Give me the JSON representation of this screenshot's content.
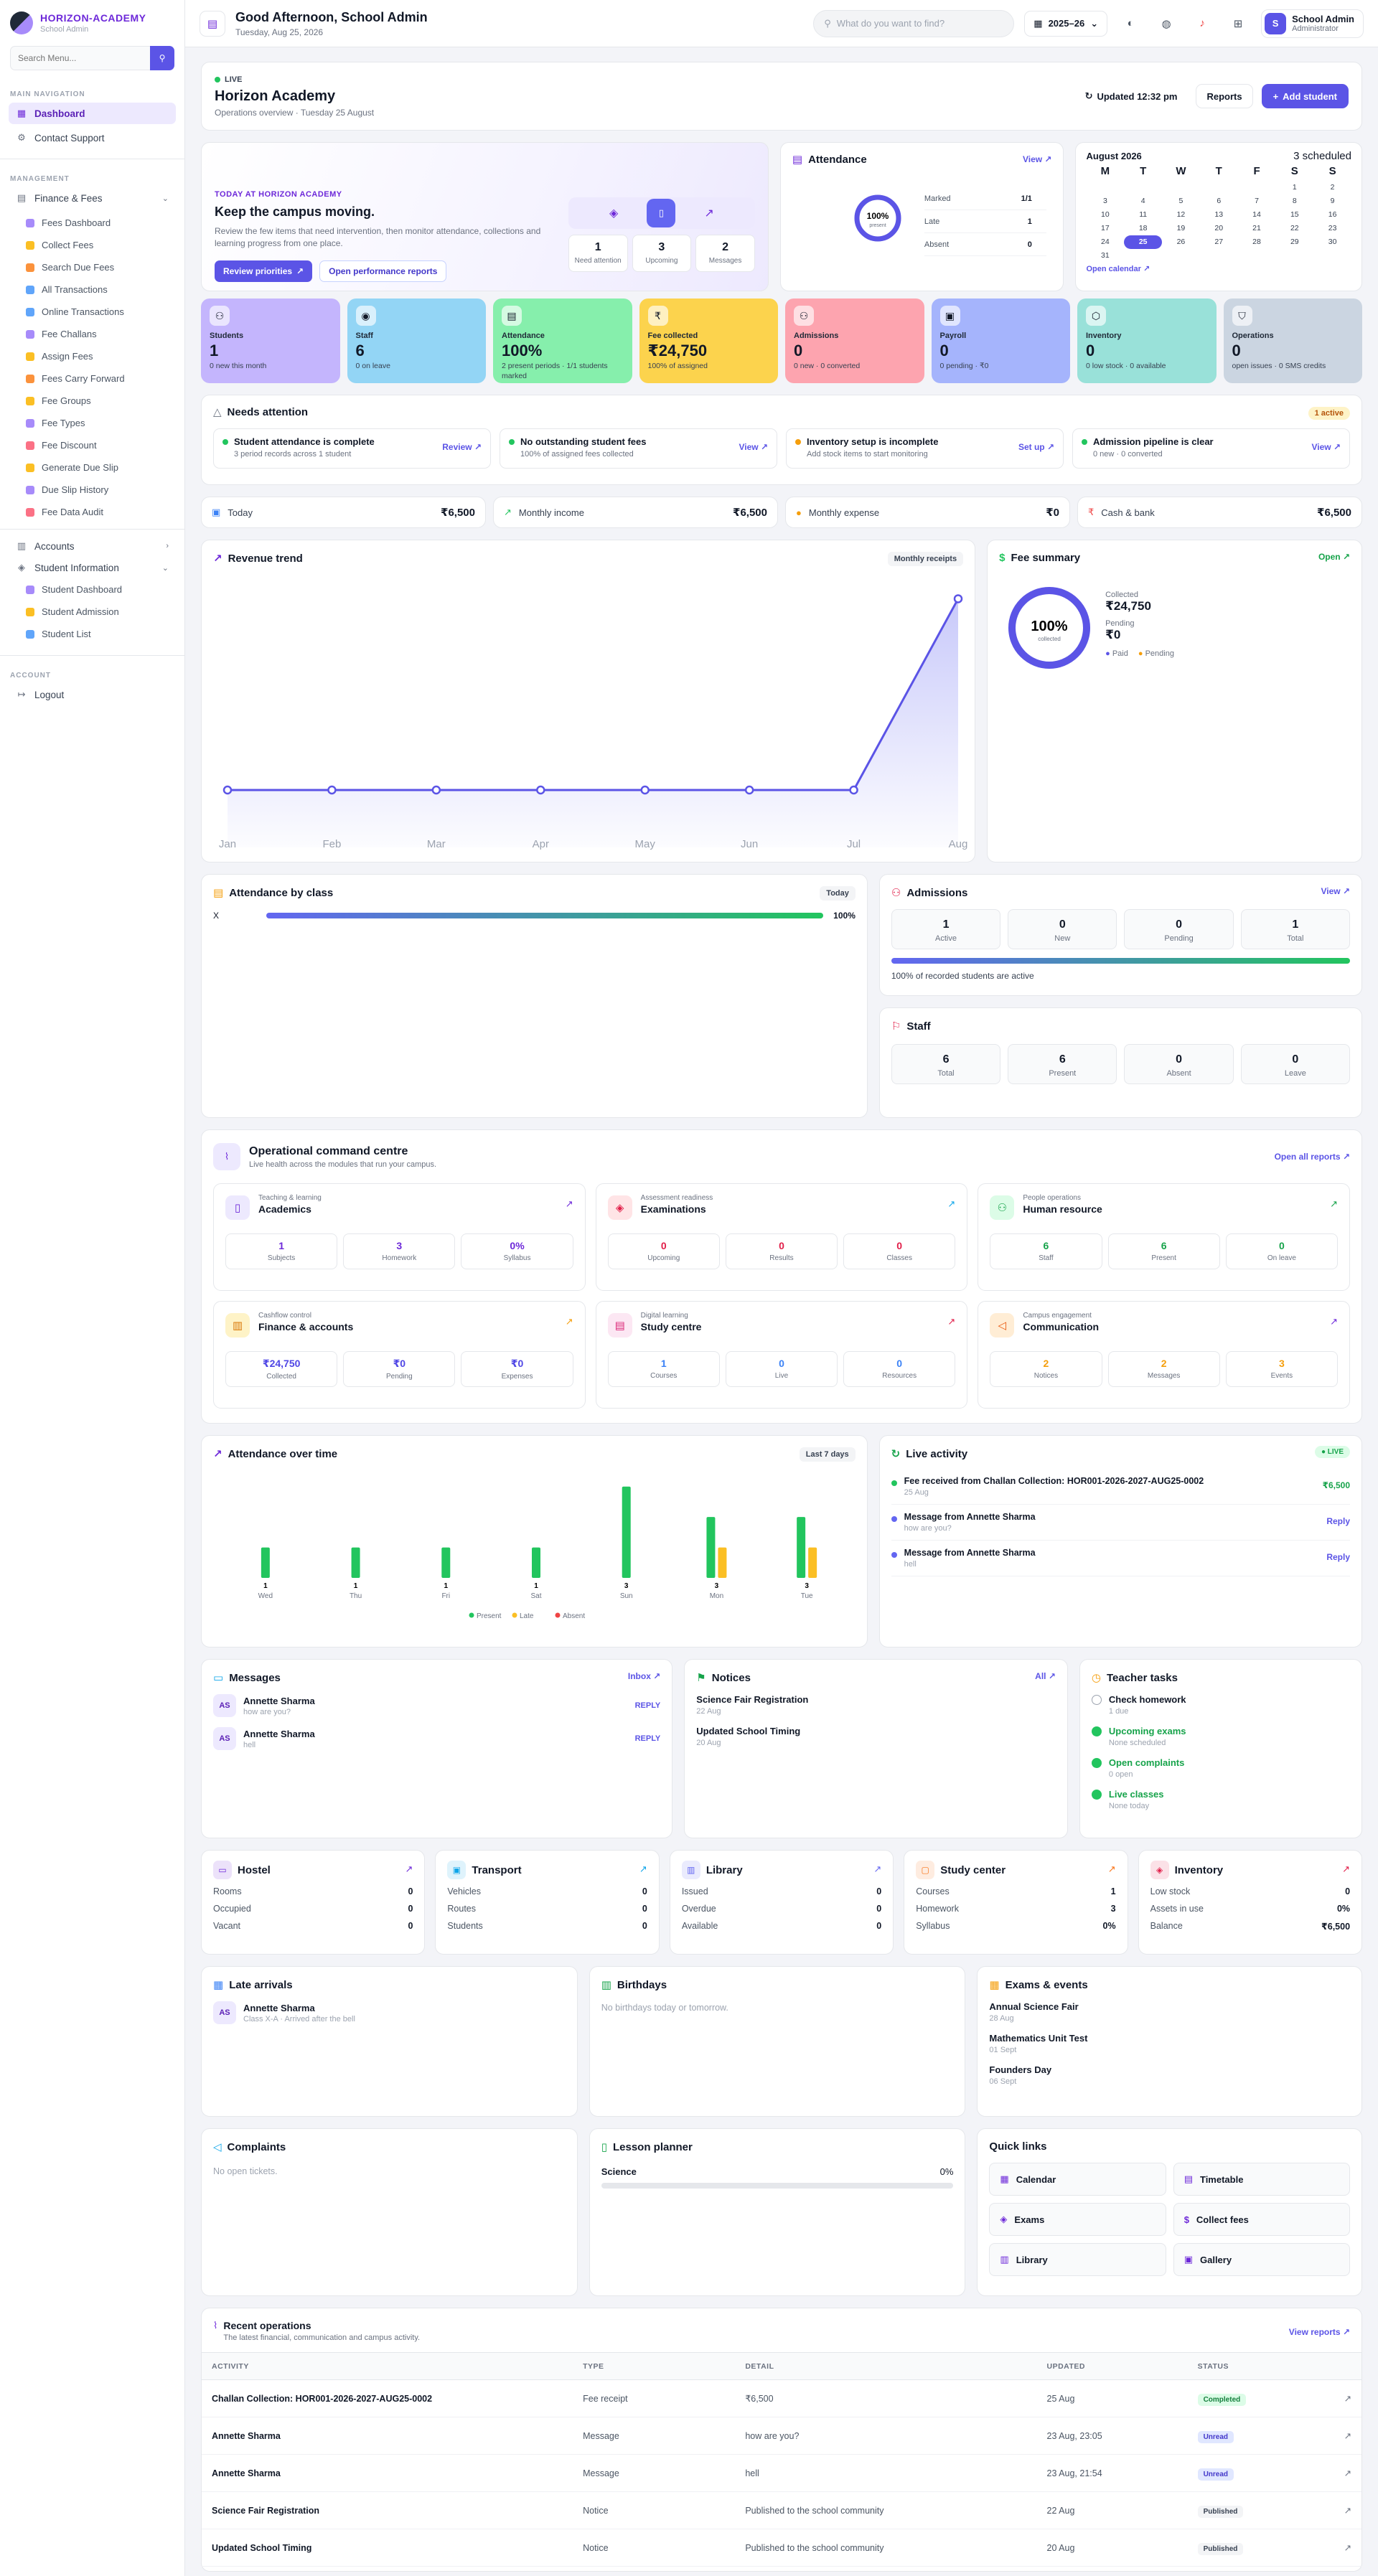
{
  "sidebar": {
    "brand": "HORIZON-ACADEMY",
    "brand_sub": "School Admin",
    "search_placeholder": "Search Menu...",
    "main_nav_label": "MAIN NAVIGATION",
    "dashboard": "Dashboard",
    "contact": "Contact Support",
    "management_label": "MANAGEMENT",
    "finance": "Finance & Fees",
    "finance_items": [
      "Fees Dashboard",
      "Collect Fees",
      "Search Due Fees",
      "All Transactions",
      "Online Transactions",
      "Fee Challans",
      "Assign Fees",
      "Fees Carry Forward",
      "Fee Groups",
      "Fee Types",
      "Fee Discount",
      "Generate Due Slip",
      "Due Slip History",
      "Fee Data Audit"
    ],
    "finance_colors": [
      "#a78bfa",
      "#fbbf24",
      "#fb923c",
      "#60a5fa",
      "#60a5fa",
      "#a78bfa",
      "#fbbf24",
      "#fb923c",
      "#fbbf24",
      "#a78bfa",
      "#fb7185",
      "#fbbf24",
      "#a78bfa",
      "#fb7185"
    ],
    "accounts": "Accounts",
    "student_info": "Student Information",
    "student_items": [
      "Student Dashboard",
      "Student Admission",
      "Student List"
    ],
    "account_label": "ACCOUNT",
    "logout": "Logout"
  },
  "topbar": {
    "greeting": "Good Afternoon, School Admin",
    "date": "Tuesday, Aug 25, 2026",
    "search_placeholder": "What do you want to find?",
    "year": "2025–26",
    "user_initial": "S",
    "user_name": "School Admin",
    "user_role": "Administrator"
  },
  "header": {
    "live": "LIVE",
    "title": "Horizon Academy",
    "subtitle": "Operations overview · Tuesday 25 August",
    "updated": "Updated 12:32 pm",
    "reports": "Reports",
    "add_student": "Add student"
  },
  "hero": {
    "kicker": "TODAY AT HORIZON ACADEMY",
    "title": "Keep the campus moving.",
    "text": "Review the few items that need intervention, then monitor attendance, collections and learning progress from one place.",
    "btn1": "Review priorities",
    "btn2": "Open performance reports",
    "stats": [
      {
        "value": "1",
        "label": "Need attention"
      },
      {
        "value": "3",
        "label": "Upcoming"
      },
      {
        "value": "2",
        "label": "Messages"
      }
    ]
  },
  "attendance": {
    "title": "Attendance",
    "link": "View",
    "percent": "100%",
    "percent_label": "present",
    "fraction": 1,
    "rows": [
      {
        "label": "Marked",
        "value": "1/1"
      },
      {
        "label": "Late",
        "value": "1"
      },
      {
        "label": "Absent",
        "value": "0"
      }
    ]
  },
  "calendar": {
    "month": "August 2026",
    "scheduled": "3 scheduled",
    "days": [
      "M",
      "T",
      "W",
      "T",
      "F",
      "S",
      "S"
    ],
    "today": 25,
    "leading_blanks": 5,
    "total_days": 31,
    "link": "Open calendar"
  },
  "kpis": [
    {
      "label": "Students",
      "value": "1",
      "sub": "0 new this month",
      "bg": "#c4b5fd",
      "icon": "users-icon"
    },
    {
      "label": "Staff",
      "value": "6",
      "sub": "0 on leave",
      "bg": "#93d5f5",
      "icon": "staff-icon"
    },
    {
      "label": "Attendance",
      "value": "100%",
      "sub": "2 present periods · 1/1 students marked",
      "bg": "#86efac",
      "icon": "clipboard-icon"
    },
    {
      "label": "Fee collected",
      "value": "₹24,750",
      "sub": "100% of assigned",
      "bg": "#fcd34d",
      "icon": "rupee-icon"
    },
    {
      "label": "Admissions",
      "value": "0",
      "sub": "0 new · 0 converted",
      "bg": "#fda4af",
      "icon": "user-plus-icon"
    },
    {
      "label": "Payroll",
      "value": "0",
      "sub": "0 pending · ₹0",
      "bg": "#a5b4fc",
      "icon": "wallet-icon"
    },
    {
      "label": "Inventory",
      "value": "0",
      "sub": "0 low stock · 0 available",
      "bg": "#99e1d9",
      "icon": "box-icon"
    },
    {
      "label": "Operations",
      "value": "0",
      "sub": "open issues · 0 SMS credits",
      "bg": "#cbd5e1",
      "icon": "shield-icon"
    }
  ],
  "needs_attention": {
    "title": "Needs attention",
    "badge": "1 active",
    "items": [
      {
        "title": "Student attendance is complete",
        "sub": "3 period records across 1 student",
        "link": "Review",
        "color": "#22c55e"
      },
      {
        "title": "No outstanding student fees",
        "sub": "100% of assigned fees collected",
        "link": "View",
        "color": "#22c55e"
      },
      {
        "title": "Inventory setup is incomplete",
        "sub": "Add stock items to start monitoring",
        "link": "Set up",
        "color": "#f59e0b"
      },
      {
        "title": "Admission pipeline is clear",
        "sub": "0 new · 0 converted",
        "link": "View",
        "color": "#22c55e"
      }
    ]
  },
  "mini": [
    {
      "label": "Today",
      "value": "₹6,500",
      "icon": "▣",
      "color": "#3b82f6"
    },
    {
      "label": "Monthly income",
      "value": "₹6,500",
      "icon": "↗",
      "color": "#22c55e"
    },
    {
      "label": "Monthly expense",
      "value": "₹0",
      "icon": "●",
      "color": "#f59e0b"
    },
    {
      "label": "Cash & bank",
      "value": "₹6,500",
      "icon": "₹",
      "color": "#ef4444"
    }
  ],
  "revenue": {
    "title": "Revenue trend",
    "tag": "Monthly receipts"
  },
  "chart_data": [
    {
      "type": "line",
      "title": "Revenue trend",
      "categories": [
        "Jan",
        "Feb",
        "Mar",
        "Apr",
        "May",
        "Jun",
        "Jul",
        "Aug"
      ],
      "values": [
        0,
        0,
        0,
        0,
        0,
        0,
        0,
        24750
      ],
      "ylim": [
        0,
        26000
      ],
      "grid": false
    },
    {
      "type": "bar",
      "title": "Attendance over time",
      "categories": [
        "Wed",
        "Thu",
        "Fri",
        "Sat",
        "Sun",
        "Mon",
        "Tue"
      ],
      "series": [
        {
          "name": "Present",
          "values": [
            1,
            1,
            1,
            1,
            3,
            2,
            2
          ],
          "color": "#22c55e"
        },
        {
          "name": "Late",
          "values": [
            0,
            0,
            0,
            0,
            0,
            1,
            1
          ],
          "color": "#fbbf24"
        },
        {
          "name": "Absent",
          "values": [
            0,
            0,
            0,
            0,
            0,
            0,
            0
          ],
          "color": "#ef4444"
        }
      ],
      "totals": [
        "1",
        "1",
        "1",
        "1",
        "3",
        "3",
        "3"
      ],
      "ylim": [
        0,
        3.3
      ]
    }
  ],
  "fee_summary": {
    "title": "Fee summary",
    "link": "Open",
    "percent": "100%",
    "percent_label": "collected",
    "fraction": 1,
    "collected_label": "Collected",
    "collected": "₹24,750",
    "pending_label": "Pending",
    "pending": "₹0",
    "legend": [
      "Paid",
      "Pending"
    ]
  },
  "att_class": {
    "title": "Attendance by class",
    "tag": "Today",
    "rows": [
      {
        "label": "X",
        "value": "100%",
        "fraction": 1
      }
    ]
  },
  "admissions": {
    "title": "Admissions",
    "link": "View",
    "boxes": [
      {
        "v": "1",
        "l": "Active"
      },
      {
        "v": "0",
        "l": "New"
      },
      {
        "v": "0",
        "l": "Pending"
      },
      {
        "v": "1",
        "l": "Total"
      }
    ],
    "fraction": 1,
    "note": "100% of recorded students are active"
  },
  "staff": {
    "title": "Staff",
    "boxes": [
      {
        "v": "6",
        "l": "Total"
      },
      {
        "v": "6",
        "l": "Present"
      },
      {
        "v": "0",
        "l": "Absent"
      },
      {
        "v": "0",
        "l": "Leave"
      }
    ]
  },
  "ops": {
    "title": "Operational command centre",
    "sub": "Live health across the modules that run your campus.",
    "link": "Open all reports",
    "cards": [
      {
        "kicker": "Teaching & learning",
        "title": "Academics",
        "bg": "#ede9fe",
        "fg": "#6d28d9",
        "icon": "book-icon",
        "arrow": "#6d28d9",
        "vcol": "#6d28d9",
        "boxes": [
          {
            "v": "1",
            "l": "Subjects"
          },
          {
            "v": "3",
            "l": "Homework"
          },
          {
            "v": "0%",
            "l": "Syllabus"
          }
        ]
      },
      {
        "kicker": "Assessment readiness",
        "title": "Examinations",
        "bg": "#ffe4e6",
        "fg": "#e11d48",
        "icon": "grad-icon",
        "arrow": "#0ea5e9",
        "vcol": "#e11d48",
        "boxes": [
          {
            "v": "0",
            "l": "Upcoming"
          },
          {
            "v": "0",
            "l": "Results"
          },
          {
            "v": "0",
            "l": "Classes"
          }
        ]
      },
      {
        "kicker": "People operations",
        "title": "Human resource",
        "bg": "#dcfce7",
        "fg": "#16a34a",
        "icon": "people-icon",
        "arrow": "#16a34a",
        "vcol": "#16a34a",
        "boxes": [
          {
            "v": "6",
            "l": "Staff"
          },
          {
            "v": "6",
            "l": "Present"
          },
          {
            "v": "0",
            "l": "On leave"
          }
        ]
      },
      {
        "kicker": "Cashflow control",
        "title": "Finance & accounts",
        "bg": "#fef3c7",
        "fg": "#d97706",
        "icon": "chart-icon",
        "arrow": "#f59e0b",
        "vcol": "#4f46e5",
        "boxes": [
          {
            "v": "₹24,750",
            "l": "Collected"
          },
          {
            "v": "₹0",
            "l": "Pending"
          },
          {
            "v": "₹0",
            "l": "Expenses"
          }
        ]
      },
      {
        "kicker": "Digital learning",
        "title": "Study centre",
        "bg": "#fce7f3",
        "fg": "#db2777",
        "icon": "library-icon",
        "arrow": "#e11d48",
        "vcol": "#3b82f6",
        "boxes": [
          {
            "v": "1",
            "l": "Courses"
          },
          {
            "v": "0",
            "l": "Live"
          },
          {
            "v": "0",
            "l": "Resources"
          }
        ]
      },
      {
        "kicker": "Campus engagement",
        "title": "Communication",
        "bg": "#ffedd5",
        "fg": "#ea580c",
        "icon": "megaphone-icon",
        "arrow": "#6d28d9",
        "vcol": "#f59e0b",
        "boxes": [
          {
            "v": "2",
            "l": "Notices"
          },
          {
            "v": "2",
            "l": "Messages"
          },
          {
            "v": "3",
            "l": "Events"
          }
        ]
      }
    ]
  },
  "att_time": {
    "title": "Attendance over time",
    "tag": "Last 7 days"
  },
  "live_activity": {
    "title": "Live activity",
    "badge": "LIVE",
    "items": [
      {
        "title": "Fee received from Challan Collection: HOR001-2026-2027-AUG25-0002",
        "sub": "25 Aug",
        "right": "₹6,500",
        "color": "#22c55e",
        "rcol": "#16a34a"
      },
      {
        "title": "Message from Annette Sharma",
        "sub": "how are you?",
        "right": "Reply",
        "color": "#6366f1",
        "rcol": "#5b54e6"
      },
      {
        "title": "Message from Annette Sharma",
        "sub": "hell",
        "right": "Reply",
        "color": "#6366f1",
        "rcol": "#5b54e6"
      }
    ]
  },
  "messages": {
    "title": "Messages",
    "link": "Inbox",
    "items": [
      {
        "ini": "AS",
        "name": "Annette Sharma",
        "text": "how are you?",
        "act": "REPLY"
      },
      {
        "ini": "AS",
        "name": "Annette Sharma",
        "text": "hell",
        "act": "REPLY"
      }
    ]
  },
  "notices": {
    "title": "Notices",
    "link": "All",
    "items": [
      {
        "t": "Science Fair Registration",
        "d": "22 Aug"
      },
      {
        "t": "Updated School Timing",
        "d": "20 Aug"
      }
    ]
  },
  "tasks": {
    "title": "Teacher tasks",
    "items": [
      {
        "t": "Check homework",
        "s": "1 due",
        "done": false
      },
      {
        "t": "Upcoming exams",
        "s": "None scheduled",
        "done": true
      },
      {
        "t": "Open complaints",
        "s": "0 open",
        "done": true
      },
      {
        "t": "Live classes",
        "s": "None today",
        "done": true
      }
    ]
  },
  "modules": [
    {
      "title": "Hostel",
      "icon": "bed-icon",
      "color": "#6d28d9",
      "rows": [
        {
          "k": "Rooms",
          "v": "0"
        },
        {
          "k": "Occupied",
          "v": "0"
        },
        {
          "k": "Vacant",
          "v": "0"
        }
      ]
    },
    {
      "title": "Transport",
      "icon": "bus-icon",
      "color": "#0ea5e9",
      "rows": [
        {
          "k": "Vehicles",
          "v": "0"
        },
        {
          "k": "Routes",
          "v": "0"
        },
        {
          "k": "Students",
          "v": "0"
        }
      ]
    },
    {
      "title": "Library",
      "icon": "library-icon",
      "color": "#6366f1",
      "rows": [
        {
          "k": "Issued",
          "v": "0"
        },
        {
          "k": "Overdue",
          "v": "0"
        },
        {
          "k": "Available",
          "v": "0"
        }
      ]
    },
    {
      "title": "Study center",
      "icon": "screen-icon",
      "color": "#f97316",
      "rows": [
        {
          "k": "Courses",
          "v": "1"
        },
        {
          "k": "Homework",
          "v": "3"
        },
        {
          "k": "Syllabus",
          "v": "0%"
        }
      ]
    },
    {
      "title": "Inventory",
      "icon": "gem-icon",
      "color": "#e11d48",
      "rows": [
        {
          "k": "Low stock",
          "v": "0"
        },
        {
          "k": "Assets in use",
          "v": "0%"
        },
        {
          "k": "Balance",
          "v": "₹6,500"
        }
      ]
    }
  ],
  "late": {
    "title": "Late arrivals",
    "ini": "AS",
    "name": "Annette Sharma",
    "sub": "Class X-A · Arrived after the bell"
  },
  "birthdays": {
    "title": "Birthdays",
    "empty": "No birthdays today or tomorrow."
  },
  "exams": {
    "title": "Exams & events",
    "items": [
      {
        "t": "Annual Science Fair",
        "d": "28 Aug"
      },
      {
        "t": "Mathematics Unit Test",
        "d": "01 Sept"
      },
      {
        "t": "Founders Day",
        "d": "06 Sept"
      }
    ]
  },
  "complaints": {
    "title": "Complaints",
    "empty": "No open tickets."
  },
  "lesson": {
    "title": "Lesson planner",
    "subject": "Science",
    "pct": "0%",
    "fraction": 0
  },
  "quick": {
    "title": "Quick links",
    "items": [
      "Calendar",
      "Timetable",
      "Exams",
      "Collect fees",
      "Library",
      "Gallery"
    ]
  },
  "recent": {
    "title": "Recent operations",
    "sub": "The latest financial, communication and campus activity.",
    "link": "View reports",
    "cols": [
      "ACTIVITY",
      "TYPE",
      "DETAIL",
      "UPDATED",
      "STATUS"
    ],
    "rows": [
      {
        "a": "Challan Collection: HOR001-2026-2027-AUG25-0002",
        "t": "Fee receipt",
        "d": "₹6,500",
        "u": "25 Aug",
        "s": "Completed",
        "c": "c"
      },
      {
        "a": "Annette Sharma",
        "t": "Message",
        "d": "how are you?",
        "u": "23 Aug, 23:05",
        "s": "Unread",
        "c": "u"
      },
      {
        "a": "Annette Sharma",
        "t": "Message",
        "d": "hell",
        "u": "23 Aug, 21:54",
        "s": "Unread",
        "c": "u"
      },
      {
        "a": "Science Fair Registration",
        "t": "Notice",
        "d": "Published to the school community",
        "u": "22 Aug",
        "s": "Published",
        "c": "p"
      },
      {
        "a": "Updated School Timing",
        "t": "Notice",
        "d": "Published to the school community",
        "u": "20 Aug",
        "s": "Published",
        "c": "p"
      }
    ]
  }
}
